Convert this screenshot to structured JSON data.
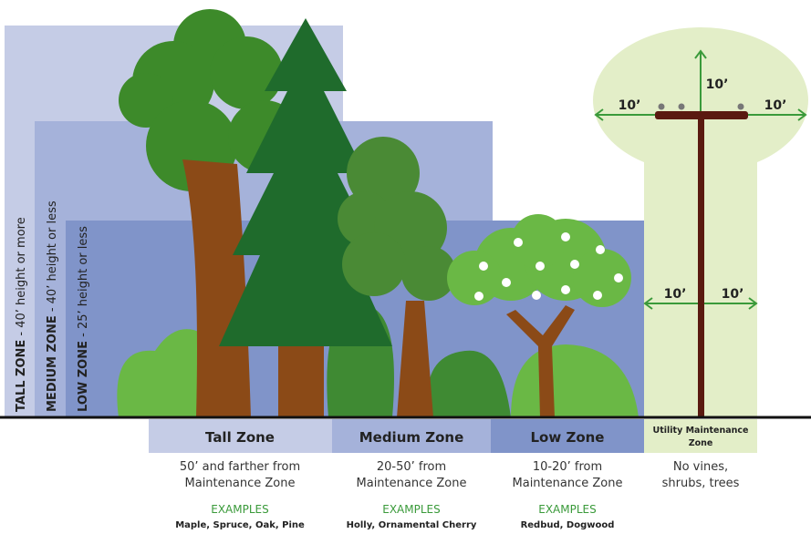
{
  "zones": [
    {
      "name": "TALL ZONE",
      "height": " - 40’ height or more"
    },
    {
      "name": "MEDIUM ZONE",
      "height": " - 40’ height or less"
    },
    {
      "name": "LOW ZONE",
      "height": " - 25’ height or less"
    }
  ],
  "clearances": [
    "10’",
    "10’",
    "10’",
    "10’",
    "10’"
  ],
  "columns": [
    {
      "title": "Tall Zone",
      "description": [
        "50’ and farther from",
        "Maintenance Zone"
      ],
      "examples_heading": "EXAMPLES",
      "examples": "Maple, Spruce, Oak, Pine"
    },
    {
      "title": "Medium Zone",
      "description": [
        "20-50’ from",
        "Maintenance Zone"
      ],
      "examples_heading": "EXAMPLES",
      "examples": "Holly, Ornamental Cherry"
    },
    {
      "title": "Low Zone",
      "description": [
        "10-20’ from",
        "Maintenance Zone"
      ],
      "examples_heading": "EXAMPLES",
      "examples": "Redbud, Dogwood"
    },
    {
      "title": [
        "Utility Maintenance",
        "Zone"
      ],
      "description": [
        "No vines,",
        "shrubs, trees"
      ]
    }
  ]
}
